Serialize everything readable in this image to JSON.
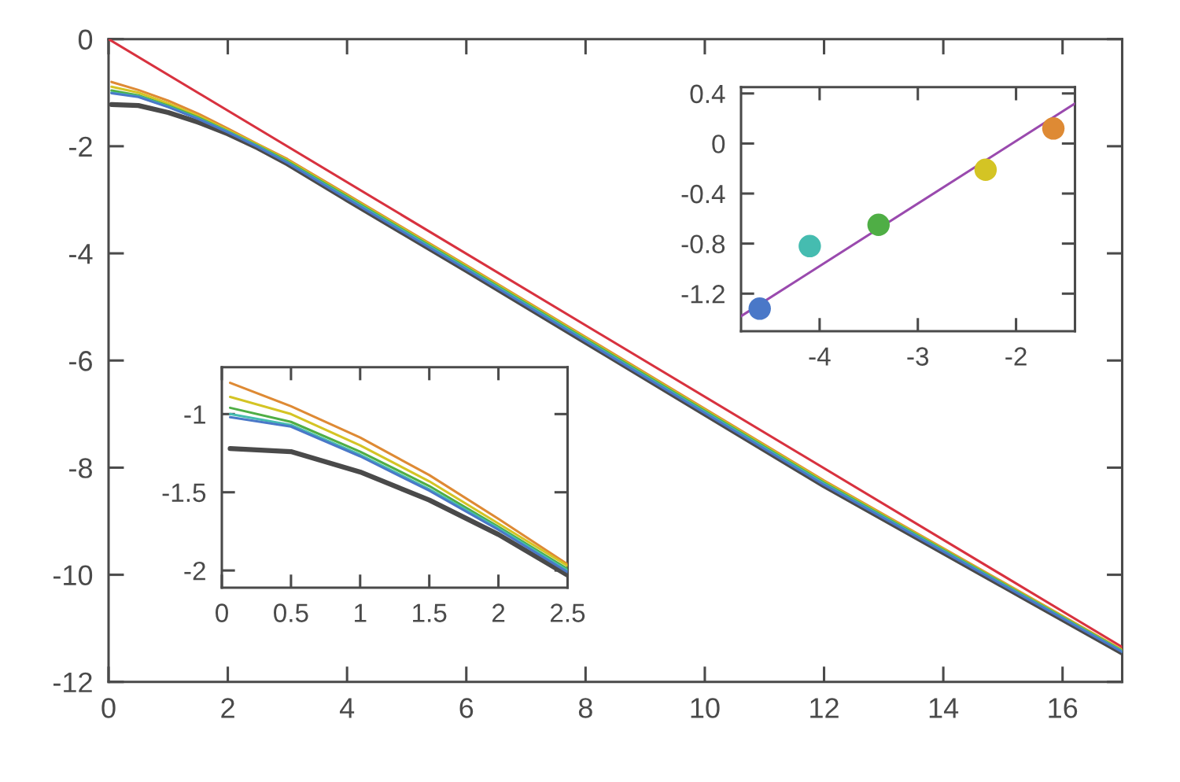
{
  "chart_data": [
    {
      "type": "line",
      "xlim": [
        0,
        17
      ],
      "ylim": [
        -12,
        0
      ],
      "xticks": [
        0,
        2,
        4,
        6,
        8,
        10,
        12,
        14,
        16
      ],
      "yticks": [
        {
          "value": 0,
          "label": "0"
        },
        {
          "value": -2,
          "label": "-2"
        },
        {
          "value": -4,
          "label": "-4"
        },
        {
          "value": -6,
          "label": "-6"
        },
        {
          "value": -8,
          "label": "-8"
        },
        {
          "value": -10,
          "label": "-10"
        },
        {
          "value": -12,
          "label": "-12"
        }
      ],
      "grid": false,
      "x": [
        0.05,
        0.5,
        1,
        1.5,
        2,
        2.5,
        3,
        4,
        6,
        8,
        12,
        17
      ],
      "series": [
        {
          "color": "#4a4a4a",
          "values": [
            -1.22,
            -1.24,
            -1.37,
            -1.55,
            -1.77,
            -2.03,
            -2.33,
            -3.0,
            -4.32,
            -5.66,
            -8.34,
            -11.46
          ]
        },
        {
          "color": "#4a78c8",
          "values": [
            -1.01,
            -1.08,
            -1.27,
            -1.49,
            -1.74,
            -2.01,
            -2.31,
            -2.98,
            -4.3,
            -5.64,
            -8.32,
            -11.44
          ]
        },
        {
          "color": "#45bcb0",
          "values": [
            -1.0,
            -1.07,
            -1.26,
            -1.48,
            -1.73,
            -2.0,
            -2.3,
            -2.96,
            -4.28,
            -5.62,
            -8.3,
            -11.43
          ]
        },
        {
          "color": "#4fae45",
          "values": [
            -0.96,
            -1.05,
            -1.24,
            -1.46,
            -1.72,
            -1.99,
            -2.28,
            -2.94,
            -4.26,
            -5.6,
            -8.28,
            -11.42
          ]
        },
        {
          "color": "#d4c424",
          "values": [
            -0.89,
            -1.0,
            -1.2,
            -1.43,
            -1.7,
            -1.97,
            -2.26,
            -2.92,
            -4.24,
            -5.58,
            -8.26,
            -11.41
          ]
        },
        {
          "color": "#de8a34",
          "values": [
            -0.8,
            -0.95,
            -1.15,
            -1.39,
            -1.67,
            -1.96,
            -2.24,
            -2.9,
            -4.22,
            -5.56,
            -8.24,
            -11.4
          ]
        },
        {
          "color": "#d8323f",
          "x": [
            0,
            17
          ],
          "values": [
            0,
            -11.35
          ]
        }
      ]
    },
    {
      "type": "line",
      "xlim": [
        0,
        2.5
      ],
      "ylim": [
        -2.11,
        -0.7
      ],
      "xticks": [
        0,
        0.5,
        1,
        1.5,
        2,
        2.5
      ],
      "yticks": [
        {
          "value": -1,
          "label": "-1"
        },
        {
          "value": -1.5,
          "label": "-1.5"
        },
        {
          "value": -2,
          "label": "-2"
        }
      ],
      "grid": false,
      "x": [
        0.06,
        0.5,
        1,
        1.5,
        2,
        2.5
      ],
      "series": [
        {
          "color": "#4a4a4a",
          "values": [
            -1.22,
            -1.24,
            -1.37,
            -1.55,
            -1.77,
            -2.03
          ]
        },
        {
          "color": "#4a78c8",
          "values": [
            -1.02,
            -1.08,
            -1.27,
            -1.49,
            -1.74,
            -2.01
          ]
        },
        {
          "color": "#45bcb0",
          "values": [
            -1.0,
            -1.07,
            -1.26,
            -1.48,
            -1.73,
            -2.0
          ]
        },
        {
          "color": "#4fae45",
          "values": [
            -0.96,
            -1.05,
            -1.24,
            -1.46,
            -1.72,
            -1.99
          ]
        },
        {
          "color": "#d4c424",
          "values": [
            -0.89,
            -1.0,
            -1.2,
            -1.43,
            -1.7,
            -1.97
          ]
        },
        {
          "color": "#de8a34",
          "values": [
            -0.8,
            -0.95,
            -1.15,
            -1.39,
            -1.67,
            -1.96
          ]
        }
      ]
    },
    {
      "type": "scatter",
      "xlim": [
        -4.8,
        -1.4
      ],
      "ylim": [
        -1.5,
        0.45
      ],
      "xticks": [
        -4,
        -3,
        -2
      ],
      "yticks": [
        0.4,
        {
          "value": 0,
          "label": "0"
        },
        -0.4,
        -0.8,
        -1.2
      ],
      "grid": false,
      "series": [
        {
          "type": "scatter",
          "marker": "circle",
          "x": [
            -4.61,
            -4.1,
            -3.4,
            -2.31,
            -1.62
          ],
          "values": [
            -1.32,
            -0.82,
            -0.65,
            -0.21,
            0.12
          ],
          "colors": [
            "#4a78c8",
            "#45bcb0",
            "#4fae45",
            "#d4c424",
            "#de8a34"
          ]
        },
        {
          "type": "line",
          "color": "#9a4aae",
          "x": [
            -4.8,
            -1.4
          ],
          "values": [
            -1.38,
            0.32
          ]
        }
      ]
    }
  ]
}
